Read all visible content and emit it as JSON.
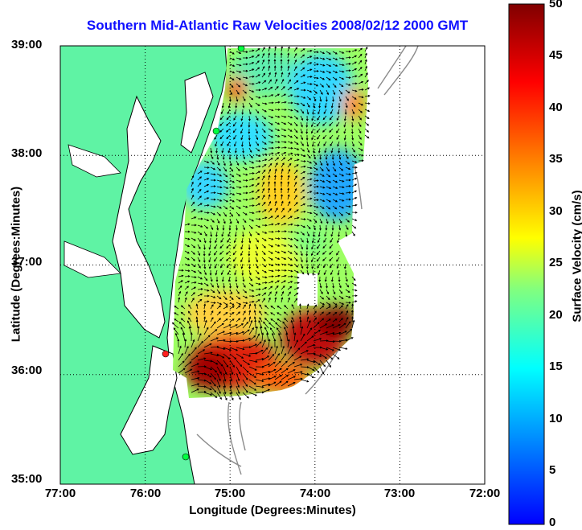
{
  "title": "Southern Mid-Atlantic Raw Velocities 2008/02/12 2000 GMT",
  "xlabel": "Longitude (Degrees:Minutes)",
  "ylabel": "Latitude (Degrees:Minutes)",
  "colorbar": {
    "label": "Surface Velocity (cm/s)",
    "ticks": [
      "0",
      "5",
      "10",
      "15",
      "20",
      "25",
      "30",
      "35",
      "40",
      "45",
      "50"
    ],
    "range": [
      0,
      50
    ],
    "colors": [
      "#0000ff",
      "#00ffff",
      "#ffff00",
      "#ff0000",
      "#800000"
    ]
  },
  "axes": {
    "x_ticks": [
      "77:00",
      "76:00",
      "75:00",
      "74:00",
      "73:00",
      "72:00"
    ],
    "y_ticks": [
      "39:00",
      "38:00",
      "37:00",
      "36:00",
      "35:00"
    ],
    "xlim": [
      -77,
      -72
    ],
    "ylim": [
      35,
      39
    ],
    "grid": true
  },
  "colors": {
    "land": "#5ff3a4",
    "bathymetry": "#8c8c8c",
    "title": "#1010ff",
    "vector": "#000000"
  }
}
